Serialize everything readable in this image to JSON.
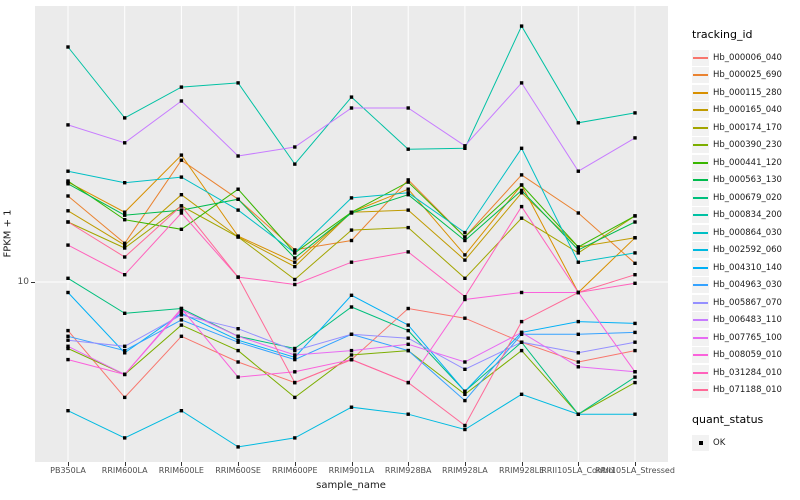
{
  "chart_data": {
    "type": "line",
    "title": "",
    "xlabel": "sample_name",
    "ylabel": "FPKM + 1",
    "yscale": "log10",
    "yticks": [
      {
        "value": 10,
        "label": "10"
      }
    ],
    "ylim": [
      2.2,
      90
    ],
    "grid": "major-only",
    "panel_bg": "#EBEBEB",
    "grid_color": "#FFFFFF",
    "point_marker": "square",
    "point_color": "#000000",
    "categories": [
      "PB350LA",
      "RRIM600LA",
      "RRIM600LE",
      "RRIM600SE",
      "RRIM600PE",
      "RRIM901LA",
      "RRIM928BA",
      "RRIM928LA",
      "RRIM928LE",
      "RRII105LA_Control",
      "RRII105LA_Stressed"
    ],
    "series": [
      {
        "name": "Hb_000006_040",
        "color": "#F8766D",
        "values": [
          6.8,
          4.0,
          6.5,
          5.3,
          4.5,
          5.4,
          8.1,
          7.5,
          6.2,
          5.3,
          5.8
        ]
      },
      {
        "name": "Hb_000025_690",
        "color": "#EA8331",
        "values": [
          19.8,
          13.6,
          26.3,
          19.3,
          12.9,
          13.9,
          22.5,
          14.3,
          23.4,
          17.3,
          11.6
        ]
      },
      {
        "name": "Hb_000115_280",
        "color": "#D89000",
        "values": [
          22.1,
          17.4,
          27.4,
          14.4,
          11.7,
          17.4,
          20.9,
          12.4,
          21.6,
          9.2,
          14.2
        ]
      },
      {
        "name": "Hb_000165_040",
        "color": "#C09B00",
        "values": [
          17.6,
          13.4,
          20.0,
          14.3,
          11.3,
          17.4,
          17.7,
          11.9,
          20.3,
          13.2,
          14.2
        ]
      },
      {
        "name": "Hb_000174_170",
        "color": "#A3A500",
        "values": [
          16.1,
          13.1,
          18.3,
          14.3,
          10.2,
          15.1,
          15.4,
          10.3,
          16.6,
          12.6,
          16.9
        ]
      },
      {
        "name": "Hb_000390_230",
        "color": "#7CAE00",
        "values": [
          5.9,
          4.8,
          7.1,
          5.8,
          4.0,
          5.6,
          5.8,
          4.1,
          5.8,
          3.5,
          4.5
        ]
      },
      {
        "name": "Hb_000441_120",
        "color": "#39B600",
        "values": [
          22.3,
          16.4,
          15.2,
          20.9,
          12.6,
          17.4,
          22.1,
          14.3,
          21.6,
          13.2,
          16.9
        ]
      },
      {
        "name": "Hb_000563_130",
        "color": "#00BB4E",
        "values": [
          21.8,
          17.0,
          17.7,
          19.3,
          12.1,
          17.3,
          20.0,
          13.9,
          20.7,
          12.9,
          16.1
        ]
      },
      {
        "name": "Hb_000679_020",
        "color": "#00BF7D",
        "values": [
          10.3,
          7.8,
          8.1,
          6.5,
          5.9,
          8.2,
          6.8,
          4.2,
          6.2,
          3.5,
          4.7
        ]
      },
      {
        "name": "Hb_000834_200",
        "color": "#00C1A3",
        "values": [
          64.6,
          36.8,
          47.0,
          48.6,
          25.5,
          43.4,
          28.7,
          28.9,
          76.3,
          35.4,
          38.3
        ]
      },
      {
        "name": "Hb_000864_030",
        "color": "#00BFC4",
        "values": [
          24.1,
          22.0,
          23.0,
          17.7,
          12.6,
          19.5,
          20.3,
          14.8,
          28.9,
          11.7,
          12.6
        ]
      },
      {
        "name": "Hb_002592_060",
        "color": "#00BAE0",
        "values": [
          3.6,
          2.9,
          3.6,
          2.7,
          2.9,
          3.7,
          3.5,
          3.1,
          4.1,
          3.5,
          3.5
        ]
      },
      {
        "name": "Hb_004310_140",
        "color": "#00B0F6",
        "values": [
          9.2,
          5.7,
          7.8,
          6.3,
          5.5,
          9.0,
          7.1,
          4.2,
          6.7,
          7.3,
          7.2
        ]
      },
      {
        "name": "Hb_004963_030",
        "color": "#35A2FF",
        "values": [
          6.5,
          5.8,
          7.4,
          6.2,
          5.4,
          6.6,
          5.8,
          3.9,
          6.6,
          6.6,
          6.7
        ]
      },
      {
        "name": "Hb_005867_070",
        "color": "#9590FF",
        "values": [
          6.3,
          6.0,
          7.7,
          6.9,
          5.8,
          6.6,
          6.4,
          5.0,
          6.2,
          5.7,
          6.2
        ]
      },
      {
        "name": "Hb_006483_110",
        "color": "#C77CFF",
        "values": [
          34.8,
          30.2,
          42.1,
          27.2,
          29.2,
          39.8,
          39.8,
          29.5,
          48.6,
          24.1,
          31.4
        ]
      },
      {
        "name": "Hb_007765_100",
        "color": "#E76BF3",
        "values": [
          6.0,
          4.8,
          8.0,
          6.5,
          5.6,
          5.8,
          6.1,
          5.3,
          6.7,
          5.1,
          4.9
        ]
      },
      {
        "name": "Hb_008059_010",
        "color": "#FA62DB",
        "values": [
          5.4,
          4.8,
          8.1,
          4.7,
          4.9,
          5.4,
          4.5,
          8.7,
          9.2,
          9.2,
          4.9
        ]
      },
      {
        "name": "Hb_031284_010",
        "color": "#FF62BC",
        "values": [
          13.4,
          10.6,
          17.3,
          10.4,
          9.8,
          11.7,
          12.7,
          8.9,
          18.2,
          9.2,
          9.9
        ]
      },
      {
        "name": "Hb_071188_010",
        "color": "#FF6A98",
        "values": [
          16.1,
          12.2,
          18.3,
          10.4,
          4.5,
          5.4,
          4.5,
          3.2,
          7.3,
          9.2,
          10.6
        ]
      }
    ],
    "legend": {
      "color_title": "tracking_id",
      "shape_title": "quant_status",
      "shape_items": [
        {
          "label": "OK",
          "marker": "black-square"
        }
      ]
    }
  }
}
